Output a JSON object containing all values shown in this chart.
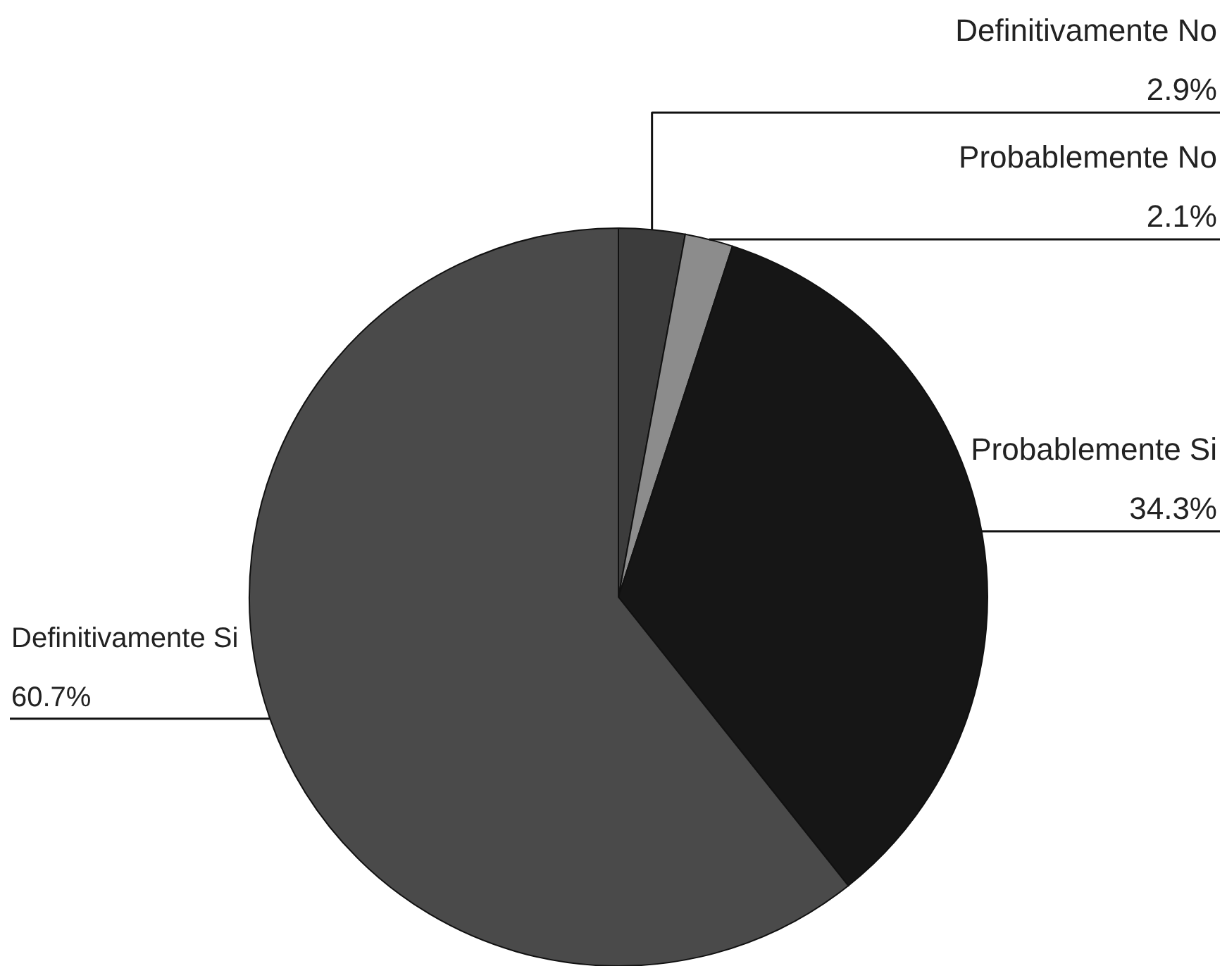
{
  "chart_data": {
    "type": "pie",
    "categories": [
      "Definitivamente No",
      "Probablemente No",
      "Probablemente Si",
      "Definitivamente Si"
    ],
    "values": [
      2.9,
      2.1,
      34.3,
      60.7
    ],
    "value_labels": [
      "2.9%",
      "2.1%",
      "34.3%",
      "60.7%"
    ],
    "colors": [
      "#3c3c3c",
      "#8c8c8c",
      "#161616",
      "#4a4a4a"
    ]
  }
}
